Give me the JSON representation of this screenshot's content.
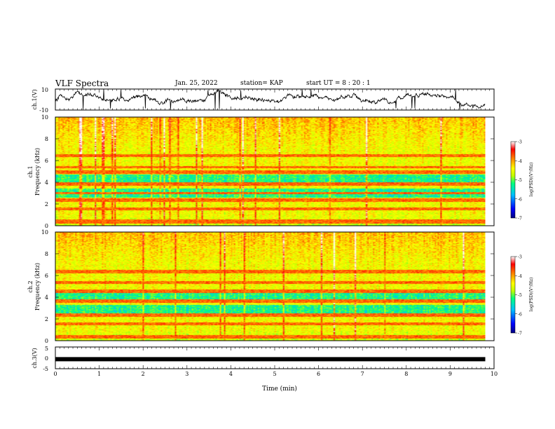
{
  "header": {
    "title": "VLF Spectra",
    "date": "Jan. 25, 2022",
    "station": "station= KAP",
    "start": "start UT =  8 : 20 : 1"
  },
  "chart_data": [
    {
      "type": "line",
      "panel": "ch1-waveform",
      "ylabel": "ch.1(V)",
      "ylim": [
        -10,
        10
      ],
      "yticks": [
        "10",
        "-10"
      ],
      "xlim": [
        0,
        10
      ],
      "x_end": 9.8,
      "color": "#000000",
      "grid": false
    },
    {
      "type": "heatmap",
      "panel": "ch1-spectrogram",
      "ylabel": "ch.1",
      "ylabel2": "Frequency (kHz)",
      "ylim": [
        0,
        10
      ],
      "yticks": [
        "0",
        "2",
        "4",
        "6",
        "8",
        "10"
      ],
      "xlim": [
        0,
        10
      ],
      "x_end": 9.8,
      "colorbar": {
        "label": "log(PSD)(V²/Hz)",
        "range": [
          -7,
          -3
        ],
        "ticks": [
          "-3",
          "-4",
          "-5",
          "-6",
          "-7"
        ],
        "colors": [
          "#000080",
          "#0000ff",
          "#00bfff",
          "#00ff80",
          "#c0ff00",
          "#ffff00",
          "#ff8000",
          "#ff0000",
          "#ffffff"
        ]
      },
      "bands_khz": [
        [
          0.2,
          0.6
        ],
        [
          1.4,
          1.7
        ],
        [
          2.2,
          2.5
        ],
        [
          2.9,
          3.1
        ],
        [
          3.7,
          4.0
        ],
        [
          4.8,
          5.1
        ],
        [
          5.3,
          5.5
        ],
        [
          6.3,
          6.6
        ]
      ],
      "low_bands_khz": [
        [
          2.6,
          3.4
        ],
        [
          3.9,
          4.7
        ]
      ]
    },
    {
      "type": "heatmap",
      "panel": "ch2-spectrogram",
      "ylabel": "ch.2",
      "ylabel2": "Frequency (kHz)",
      "ylim": [
        0,
        10
      ],
      "yticks": [
        "0",
        "2",
        "4",
        "6",
        "8",
        "10"
      ],
      "xlim": [
        0,
        10
      ],
      "x_end": 9.8,
      "colorbar": {
        "label": "log(PSD)(V²/Hz)",
        "range": [
          -7,
          -3
        ],
        "ticks": [
          "-3",
          "-4",
          "-5",
          "-6",
          "-7"
        ],
        "colors": [
          "#000080",
          "#0000ff",
          "#00bfff",
          "#00ff80",
          "#c0ff00",
          "#ffff00",
          "#ff8000",
          "#ff0000",
          "#ffffff"
        ]
      },
      "bands_khz": [
        [
          0.2,
          0.5
        ],
        [
          1.4,
          1.7
        ],
        [
          2.2,
          2.5
        ],
        [
          3.5,
          3.8
        ],
        [
          4.4,
          4.7
        ],
        [
          5.2,
          5.5
        ],
        [
          6.2,
          6.5
        ]
      ],
      "low_bands_khz": [
        [
          2.3,
          3.3
        ],
        [
          3.8,
          4.4
        ]
      ]
    },
    {
      "type": "line",
      "panel": "ch3-waveform",
      "ylabel": "ch.3(V)",
      "ylim": [
        -5,
        5
      ],
      "yticks": [
        "5",
        "0",
        "-5"
      ],
      "xlim": [
        0,
        10
      ],
      "x_end": 9.8,
      "level": -0.6,
      "color": "#000000",
      "xlabel": "Time (min)",
      "xticks": [
        "0",
        "1",
        "2",
        "3",
        "4",
        "5",
        "6",
        "7",
        "8",
        "9",
        "10"
      ],
      "grid": false
    }
  ]
}
